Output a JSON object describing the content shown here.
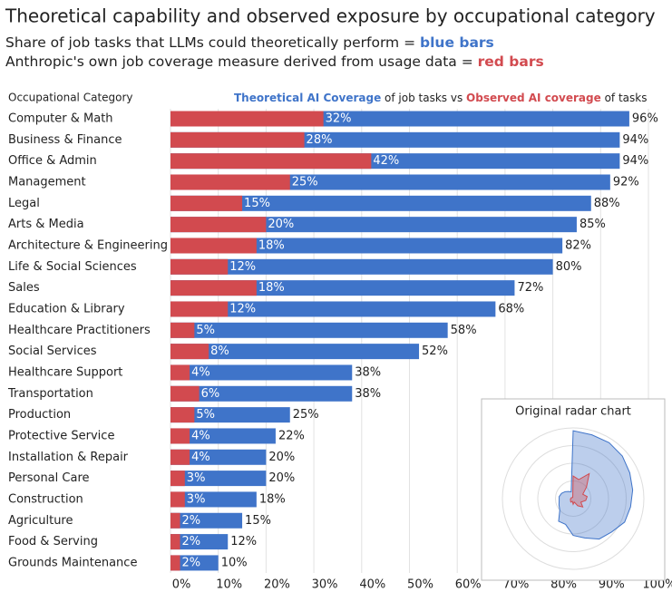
{
  "chart_data": {
    "type": "bar",
    "title": "Theoretical capability and observed exposure by occupational category",
    "subtitle": [
      {
        "text": "Share of job tasks that LLMs could theoretically perform = ",
        "highlight": "blue bars"
      },
      {
        "text": "Anthropic's own job coverage measure derived from usage data = ",
        "highlight": "red bars"
      }
    ],
    "y_label": "Occupational Category",
    "legend_header": [
      "of job tasks vs",
      "of tasks"
    ],
    "inset_title": "Original radar chart",
    "categories": [
      "Computer & Math",
      "Business & Finance",
      "Office & Admin",
      "Management",
      "Legal",
      "Arts & Media",
      "Architecture & Engineering",
      "Life & Social Sciences",
      "Sales",
      "Education & Library",
      "Healthcare Practitioners",
      "Social Services",
      "Healthcare Support",
      "Transportation",
      "Production",
      "Protective Service",
      "Installation & Repair",
      "Personal Care",
      "Construction",
      "Agriculture",
      "Food & Serving",
      "Grounds Maintenance"
    ],
    "series": [
      {
        "name": "Theoretical AI Coverage",
        "color": "#3f74c9",
        "values": [
          96,
          94,
          94,
          92,
          88,
          85,
          82,
          80,
          72,
          68,
          58,
          52,
          38,
          38,
          25,
          22,
          20,
          20,
          18,
          15,
          12,
          10
        ],
        "value_labels": [
          "96%",
          "94%",
          "94%",
          "92%",
          "88%",
          "85%",
          "82%",
          "80%",
          "72%",
          "68%",
          "58%",
          "52%",
          "38%",
          "38%",
          "25%",
          "22%",
          "20%",
          "20%",
          "18%",
          "15%",
          "12%",
          "10%"
        ]
      },
      {
        "name": "Observed AI coverage",
        "color": "#d24a4f",
        "values": [
          32,
          28,
          42,
          25,
          15,
          20,
          18,
          12,
          18,
          12,
          5,
          8,
          4,
          6,
          5,
          4,
          4,
          3,
          3,
          2,
          2,
          2
        ],
        "value_labels": [
          "32%",
          "28%",
          "42%",
          "25%",
          "15%",
          "20%",
          "18%",
          "12%",
          "18%",
          "12%",
          "5%",
          "8%",
          "4%",
          "6%",
          "5%",
          "4%",
          "4%",
          "3%",
          "3%",
          "2%",
          "2%",
          "2%"
        ]
      }
    ],
    "xlim": [
      0,
      100
    ],
    "xticks": [
      {
        "value": 0,
        "label": "0%"
      },
      {
        "value": 10,
        "label": "10%"
      },
      {
        "value": 20,
        "label": "20%"
      },
      {
        "value": 30,
        "label": "30%"
      },
      {
        "value": 40,
        "label": "40%"
      },
      {
        "value": 50,
        "label": "50%"
      },
      {
        "value": 60,
        "label": "60%"
      },
      {
        "value": 70,
        "label": "70%"
      },
      {
        "value": 80,
        "label": "80%"
      },
      {
        "value": 90,
        "label": "90%"
      },
      {
        "value": 100,
        "label": "100%"
      }
    ],
    "grid": true
  }
}
